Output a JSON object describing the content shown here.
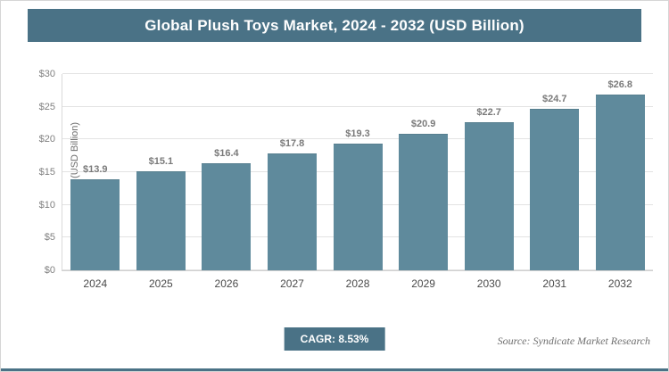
{
  "header": {
    "title": "Global Plush Toys Market, 2024 - 2032 (USD Billion)"
  },
  "chart_data": {
    "type": "bar",
    "title": "Global Plush Toys Market, 2024 - 2032 (USD Billion)",
    "categories": [
      "2024",
      "2025",
      "2026",
      "2027",
      "2028",
      "2029",
      "2030",
      "2031",
      "2032"
    ],
    "values": [
      13.9,
      15.1,
      16.4,
      17.8,
      19.3,
      20.9,
      22.7,
      24.7,
      26.8
    ],
    "value_labels": [
      "$13.9",
      "$15.1",
      "$16.4",
      "$17.8",
      "$19.3",
      "$20.9",
      "$22.7",
      "$24.7",
      "$26.8"
    ],
    "xlabel": "",
    "ylabel": "Market Size (USD Billion)",
    "ylim": [
      0,
      30
    ],
    "y_ticks": [
      0,
      5,
      10,
      15,
      20,
      25,
      30
    ],
    "y_tick_labels": [
      "$0",
      "$5",
      "$10",
      "$15",
      "$20",
      "$25",
      "$30"
    ],
    "grid": true,
    "legend": "none",
    "bar_color": "#5f8a9c"
  },
  "footer": {
    "cagr_label": "CAGR: 8.53%",
    "source": "Source: Syndicate Market Research"
  },
  "colors": {
    "accent": "#4a7286",
    "bar": "#5f8a9c",
    "gridline": "#e3e3e3"
  }
}
